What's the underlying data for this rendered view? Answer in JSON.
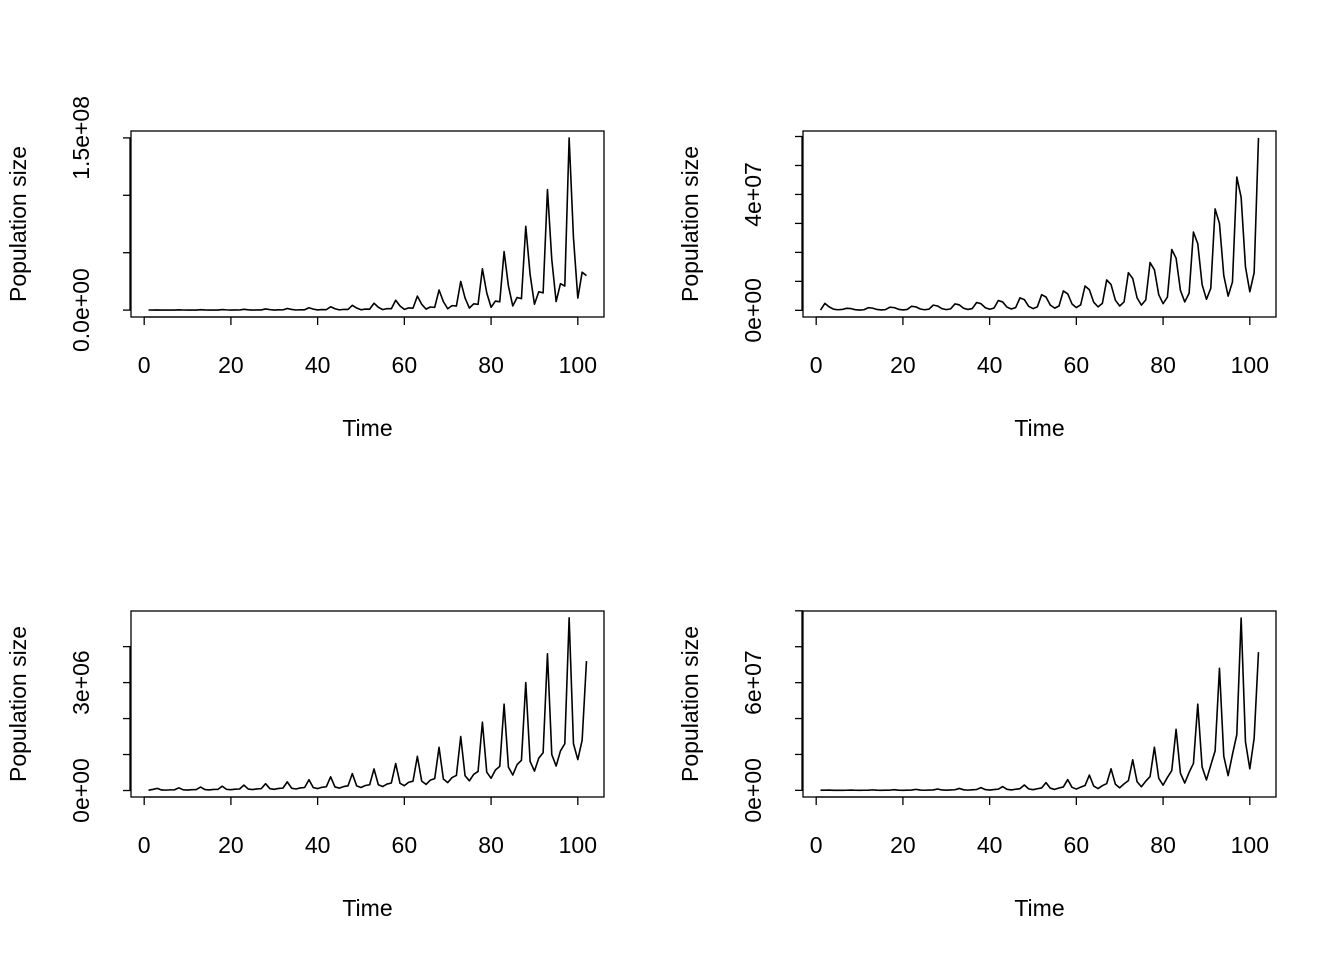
{
  "chart_data": [
    {
      "type": "line",
      "xlabel": "Time",
      "ylabel": "Population size",
      "x": [
        1,
        2,
        3,
        4,
        5,
        6,
        7,
        8,
        9,
        10,
        11,
        12,
        13,
        14,
        15,
        16,
        17,
        18,
        19,
        20,
        21,
        22,
        23,
        24,
        25,
        26,
        27,
        28,
        29,
        30,
        31,
        32,
        33,
        34,
        35,
        36,
        37,
        38,
        39,
        40,
        41,
        42,
        43,
        44,
        45,
        46,
        47,
        48,
        49,
        50,
        51,
        52,
        53,
        54,
        55,
        56,
        57,
        58,
        59,
        60,
        61,
        62,
        63,
        64,
        65,
        66,
        67,
        68,
        69,
        70,
        71,
        72,
        73,
        74,
        75,
        76,
        77,
        78,
        79,
        80,
        81,
        82,
        83,
        84,
        85,
        86,
        87,
        88,
        89,
        90,
        91,
        92,
        93,
        94,
        95,
        96,
        97,
        98,
        99,
        100,
        101,
        102
      ],
      "values": [
        100000.0,
        50000.0,
        170000.0,
        71000.0,
        12000.0,
        37000.0,
        34000.0,
        240000.0,
        100000.0,
        17000.0,
        53000.0,
        48000.0,
        340000.0,
        140000.0,
        24000.0,
        75000.0,
        68000.0,
        490000.0,
        210000.0,
        34000.0,
        110000.0,
        98000.0,
        700000.0,
        290000.0,
        49000.0,
        150000.0,
        140000.0,
        1000000.0,
        420000.0,
        70000.0,
        220000.0,
        200000.0,
        1430000.0,
        600000.0,
        100000.0,
        310000.0,
        290000.0,
        2050000.0,
        860000.0,
        140000.0,
        450000.0,
        410000.0,
        2900000.0,
        1200000.0,
        200000.0,
        640000.0,
        580000.0,
        4200000.0,
        1800000.0,
        290000.0,
        920000.0,
        840000.0,
        6000000.0,
        2500000.0,
        420000.0,
        1300000.0,
        1200000.0,
        8600000.0,
        3600000.0,
        600000.0,
        1900000.0,
        1700000.0,
        12200000.0,
        5100000.0,
        850000.0,
        2700000.0,
        2400000.0,
        17500000.0,
        7400000.0,
        1200000.0,
        3900000.0,
        3500000.0,
        25000000.0,
        10500000.0,
        1750000.0,
        5500000.0,
        5000000.0,
        36000000.0,
        15000000.0,
        2500000.0,
        7900000.0,
        7200000.0,
        51000000.0,
        21000000.0,
        3600000.0,
        11000000.0,
        10000000.0,
        73000000.0,
        31000000.0,
        5100000.0,
        16000000.0,
        15000000.0,
        105000000.0,
        44000000.0,
        7400000.0,
        23000000.0,
        21000000.0,
        150000000.0,
        63000000.0,
        10500000.0,
        33000000.0,
        30000000.0
      ],
      "color": "#000000",
      "xlim": [
        -3.04,
        106.04
      ],
      "xticks": [
        0,
        20,
        40,
        60,
        80,
        100
      ],
      "ylim": [
        -6000000.0,
        156000000.0
      ],
      "yticks": [
        {
          "value": 0,
          "label": "0.0e+00"
        },
        {
          "value": 150000000.0,
          "label": "1.5e+08"
        }
      ],
      "yminorticks": [
        50000000.0,
        100000000.0
      ]
    },
    {
      "type": "line",
      "xlabel": "Time",
      "ylabel": "Population size",
      "x": [
        1,
        2,
        3,
        4,
        5,
        6,
        7,
        8,
        9,
        10,
        11,
        12,
        13,
        14,
        15,
        16,
        17,
        18,
        19,
        20,
        21,
        22,
        23,
        24,
        25,
        26,
        27,
        28,
        29,
        30,
        31,
        32,
        33,
        34,
        35,
        36,
        37,
        38,
        39,
        40,
        41,
        42,
        43,
        44,
        45,
        46,
        47,
        48,
        49,
        50,
        51,
        52,
        53,
        54,
        55,
        56,
        57,
        58,
        59,
        60,
        61,
        62,
        63,
        64,
        65,
        66,
        67,
        68,
        69,
        70,
        71,
        72,
        73,
        74,
        75,
        76,
        77,
        78,
        79,
        80,
        81,
        82,
        83,
        84,
        85,
        86,
        87,
        88,
        89,
        90,
        91,
        92,
        93,
        94,
        95,
        96,
        97,
        98,
        99,
        100,
        101,
        102
      ],
      "values": [
        100000.0,
        2400000.0,
        1200000.0,
        400000.0,
        200000.0,
        300000.0,
        700000.0,
        600000.0,
        230000.0,
        100000.0,
        200000.0,
        900000.0,
        770000.0,
        300000.0,
        130000.0,
        250000.0,
        1100000.0,
        940000.0,
        360000.0,
        150000.0,
        310000.0,
        1400000.0,
        1200000.0,
        460000.0,
        200000.0,
        390000.0,
        1800000.0,
        1500000.0,
        590000.0,
        250000.0,
        500000.0,
        2200000.0,
        1900000.0,
        730000.0,
        310000.0,
        620000.0,
        2700000.0,
        2300000.0,
        890000.0,
        380000.0,
        760000.0,
        3400000.0,
        2900000.0,
        1100000.0,
        480000.0,
        950000.0,
        4300000.0,
        3700000.0,
        1400000.0,
        600000.0,
        1200000.0,
        5400000.0,
        4600000.0,
        1800000.0,
        760000.0,
        1500000.0,
        6700000.0,
        5700000.0,
        2200000.0,
        940000.0,
        1900000.0,
        8400000.0,
        7100000.0,
        2800000.0,
        1200000.0,
        2400000.0,
        10500000.0,
        8900000.0,
        3500000.0,
        1500000.0,
        2900000.0,
        13000000.0,
        11000000.0,
        4300000.0,
        1800000.0,
        3600000.0,
        16500000.0,
        14000000.0,
        5400000.0,
        2300000.0,
        4600000.0,
        21000000.0,
        18000000.0,
        6900000.0,
        2900000.0,
        5900000.0,
        27000000.0,
        23000000.0,
        8900000.0,
        3800000.0,
        7600000.0,
        35000000.0,
        30000000.0,
        12000000.0,
        4900000.0,
        9800000.0,
        46000000.0,
        39000000.0,
        15000000.0,
        6400000.0,
        13000000.0,
        59500000.0
      ],
      "color": "#000000",
      "xlim": [
        -3.04,
        106.04
      ],
      "xticks": [
        0,
        20,
        40,
        60,
        80,
        100
      ],
      "ylim": [
        -2300000.0,
        61900000.0
      ],
      "yticks": [
        {
          "value": 0,
          "label": "0e+00"
        },
        {
          "value": 40000000.0,
          "label": "4e+07"
        }
      ],
      "yminorticks": [
        10000000.0,
        20000000.0,
        30000000.0,
        50000000.0,
        60000000.0
      ]
    },
    {
      "type": "line",
      "xlabel": "Time",
      "ylabel": "Population size",
      "x": [
        1,
        2,
        3,
        4,
        5,
        6,
        7,
        8,
        9,
        10,
        11,
        12,
        13,
        14,
        15,
        16,
        17,
        18,
        19,
        20,
        21,
        22,
        23,
        24,
        25,
        26,
        27,
        28,
        29,
        30,
        31,
        32,
        33,
        34,
        35,
        36,
        37,
        38,
        39,
        40,
        41,
        42,
        43,
        44,
        45,
        46,
        47,
        48,
        49,
        50,
        51,
        52,
        53,
        54,
        55,
        56,
        57,
        58,
        59,
        60,
        61,
        62,
        63,
        64,
        65,
        66,
        67,
        68,
        69,
        70,
        71,
        72,
        73,
        74,
        75,
        76,
        77,
        78,
        79,
        80,
        81,
        82,
        83,
        84,
        85,
        86,
        87,
        88,
        89,
        90,
        91,
        92,
        93,
        94,
        95,
        96,
        97,
        98,
        99,
        100,
        101,
        102
      ],
      "values": [
        10000.0,
        30000.0,
        60000.0,
        16000.0,
        11000.0,
        18000.0,
        21000.0,
        75000.0,
        20000.0,
        14000.0,
        23000.0,
        26000.0,
        95000.0,
        26000.0,
        17000.0,
        29000.0,
        33000.0,
        120000.0,
        32000.0,
        22000.0,
        36000.0,
        42000.0,
        150000.0,
        41000.0,
        27000.0,
        45000.0,
        53000.0,
        190000.0,
        51000.0,
        34000.0,
        57000.0,
        67000.0,
        240000.0,
        65000.0,
        43000.0,
        72000.0,
        84000.0,
        300000.0,
        81000.0,
        54000.0,
        90000.0,
        105000.0,
        380000.0,
        100000.0,
        68000.0,
        110000.0,
        130000.0,
        470000.0,
        130000.0,
        85000.0,
        140000.0,
        160000.0,
        600000.0,
        160000.0,
        110000.0,
        180000.0,
        210000.0,
        750000.0,
        200000.0,
        135000.0,
        230000.0,
        260000.0,
        950000.0,
        260000.0,
        170000.0,
        290000.0,
        330000.0,
        1200000.0,
        320000.0,
        220000.0,
        360000.0,
        420000.0,
        1500000.0,
        410000.0,
        270000.0,
        450000.0,
        530000.0,
        1900000.0,
        510000.0,
        340000.0,
        570000.0,
        670000.0,
        2400000.0,
        650000.0,
        430000.0,
        720000.0,
        840000.0,
        3000000.0,
        810000.0,
        540000.0,
        900000.0,
        1050000.0,
        3800000.0,
        1000000.0,
        680000.0,
        1100000.0,
        1300000.0,
        4800000.0,
        1300000.0,
        860000.0,
        1400000.0,
        3600000.0
      ],
      "color": "#000000",
      "xlim": [
        -3.04,
        106.04
      ],
      "xticks": [
        0,
        20,
        40,
        60,
        80,
        100
      ],
      "ylim": [
        -180000.0,
        4990000.0
      ],
      "yticks": [
        {
          "value": 0,
          "label": "0e+00"
        },
        {
          "value": 3000000.0,
          "label": "3e+06"
        }
      ],
      "yminorticks": [
        1000000.0,
        2000000.0,
        4000000.0
      ]
    },
    {
      "type": "line",
      "xlabel": "Time",
      "ylabel": "Population size",
      "x": [
        1,
        2,
        3,
        4,
        5,
        6,
        7,
        8,
        9,
        10,
        11,
        12,
        13,
        14,
        15,
        16,
        17,
        18,
        19,
        20,
        21,
        22,
        23,
        24,
        25,
        26,
        27,
        28,
        29,
        30,
        31,
        32,
        33,
        34,
        35,
        36,
        37,
        38,
        39,
        40,
        41,
        42,
        43,
        44,
        45,
        46,
        47,
        48,
        49,
        50,
        51,
        52,
        53,
        54,
        55,
        56,
        57,
        58,
        59,
        60,
        61,
        62,
        63,
        64,
        65,
        66,
        67,
        68,
        69,
        70,
        71,
        72,
        73,
        74,
        75,
        76,
        77,
        78,
        79,
        80,
        81,
        82,
        83,
        84,
        85,
        86,
        87,
        88,
        89,
        90,
        91,
        92,
        93,
        94,
        95,
        96,
        97,
        98,
        99,
        100,
        101,
        102
      ],
      "values": [
        100000.0,
        80000.0,
        135000.0,
        38000.0,
        16000.0,
        41000.0,
        61000.0,
        190000.0,
        53000.0,
        23000.0,
        57000.0,
        86000.0,
        270000.0,
        76000.0,
        32000.0,
        81000.0,
        120000.0,
        380000.0,
        110000.0,
        46000.0,
        110000.0,
        170000.0,
        540000.0,
        150000.0,
        65000.0,
        160000.0,
        240000.0,
        760000.0,
        210000.0,
        91000.0,
        230000.0,
        340000.0,
        1070000.0,
        300000.0,
        130000.0,
        320000.0,
        480000.0,
        1500000.0,
        420000.0,
        180000.0,
        450000.0,
        680000.0,
        2100000.0,
        590000.0,
        250000.0,
        630000.0,
        950000.0,
        3000000.0,
        840000.0,
        360000.0,
        900000.0,
        1350000.0,
        4300000.0,
        1200000.0,
        520000.0,
        1300000.0,
        1900000.0,
        6000000.0,
        1700000.0,
        720000.0,
        1800000.0,
        2700000.0,
        8500000.0,
        2400000.0,
        1000000.0,
        2600000.0,
        3800000.0,
        12000000.0,
        3400000.0,
        1400000.0,
        3600000.0,
        5400000.0,
        17000000.0,
        4800000.0,
        2000000.0,
        5100000.0,
        7700000.0,
        24000000.0,
        6700000.0,
        2900000.0,
        7200000.0,
        11000000.0,
        34000000.0,
        9500000.0,
        4100000.0,
        10000000.0,
        15000000.0,
        48000000.0,
        13000000.0,
        5800000.0,
        14000000.0,
        22000000.0,
        68000000.0,
        19000000.0,
        8200000.0,
        20000000.0,
        31000000.0,
        96000000.0,
        27000000.0,
        12000000.0,
        29000000.0,
        77000000.0
      ],
      "color": "#000000",
      "xlim": [
        -3.04,
        106.04
      ],
      "xticks": [
        0,
        20,
        40,
        60,
        80,
        100
      ],
      "ylim": [
        -3700000.0,
        99900000.0
      ],
      "yticks": [
        {
          "value": 0,
          "label": "0e+00"
        },
        {
          "value": 60000000.0,
          "label": "6e+07"
        }
      ],
      "yminorticks": [
        20000000.0,
        40000000.0,
        80000000.0,
        100000000.0
      ]
    }
  ]
}
